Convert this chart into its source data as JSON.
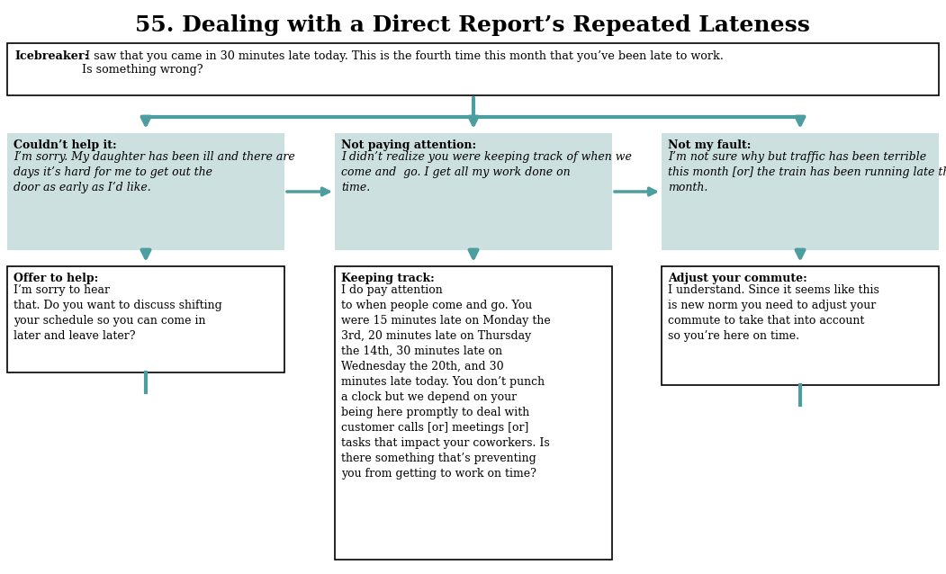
{
  "title": "55. Dealing with a Direct Report’s Repeated Lateness",
  "title_fontsize": 18,
  "background_color": "#ffffff",
  "teal_color": "#4d9ea0",
  "light_teal_bg": "#cde0e0",
  "white_bg": "#ffffff",
  "icebreaker_label": "Icebreaker:",
  "icebreaker_text": " I saw that you came in 30 minutes late today. This is the fourth time this month that you’ve been late to work.\nIs something wrong?",
  "col1_sit_label": "Couldn’t help it:",
  "col1_sit_text": " I’m sorry. My daughter has been ill and there are days it’s hard for me to get out the door as early as I’d like.",
  "col2_sit_label": "Not paying attention:",
  "col2_sit_text": " I didn’t realize you were keeping track of when we come and  go. I get all my work done on time.",
  "col3_sit_label": "Not my fault:",
  "col3_sit_text": " I’m not sure why but traffic has been terrible this month [or] the train has been running late this month.",
  "col1_resp_label": "Offer to help:",
  "col1_resp_text": " I’m sorry to hear that. Do you want to discuss shifting your schedule so you can come in later and leave later?",
  "col2_resp_label": "Keeping track:",
  "col2_resp_text": " I do pay attention to when people come and go. You were 15 minutes late on Monday the 3rd, 20 minutes late on Thursday the 14th, 30 minutes late on Wednesday the 20th, and 30 minutes late today. You don’t punch a clock but we depend on your being here promptly to deal with customer calls [or] meetings [or] tasks that impact your coworkers. Is there something that’s preventing you from getting to work on time?",
  "col3_resp_label": "Adjust your commute:",
  "col3_resp_text": " I understand. Since it seems like this is new norm you need to adjust your commute to take that into account so you’re here on time."
}
